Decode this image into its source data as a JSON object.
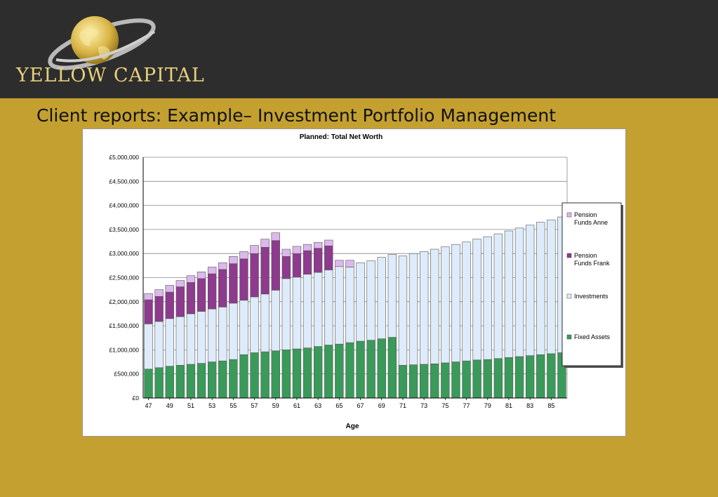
{
  "header": {
    "brand_name": "YELLOW CAPITAL",
    "colors": {
      "band": "#2d2d2d",
      "slide_bg": "#c4a030",
      "logo_gold": "#e7cf7a"
    }
  },
  "slide": {
    "title": "Client reports: Example– Investment Portfolio Management"
  },
  "chart_data": {
    "type": "bar",
    "stacked": true,
    "title": "Planned: Total Net Worth",
    "xlabel": "Age",
    "ylabel": "",
    "ylim": [
      0,
      5000000
    ],
    "y_ticks": [
      "£0",
      "£500,000",
      "£1,000,000",
      "£1,500,000",
      "£2,000,000",
      "£2,500,000",
      "£3,000,000",
      "£3,500,000",
      "£4,000,000",
      "£4,500,000",
      "£5,000,000"
    ],
    "grid": true,
    "legend_position": "right",
    "x_tick_labels": [
      "47",
      "49",
      "51",
      "53",
      "55",
      "57",
      "59",
      "61",
      "63",
      "65",
      "67",
      "69",
      "71",
      "73",
      "75",
      "77",
      "79",
      "81",
      "83",
      "85"
    ],
    "categories": [
      47,
      48,
      49,
      50,
      51,
      52,
      53,
      54,
      55,
      56,
      57,
      58,
      59,
      60,
      61,
      62,
      63,
      64,
      65,
      66,
      67,
      68,
      69,
      70,
      71,
      72,
      73,
      74,
      75,
      76,
      77,
      78,
      79,
      80,
      81,
      82,
      83,
      84,
      85,
      86
    ],
    "series": [
      {
        "name": "Fixed Assets",
        "color": "#3a9a5a",
        "values": [
          600000,
          630000,
          660000,
          680000,
          700000,
          720000,
          750000,
          770000,
          800000,
          900000,
          940000,
          960000,
          980000,
          1000000,
          1020000,
          1040000,
          1070000,
          1100000,
          1120000,
          1150000,
          1180000,
          1200000,
          1230000,
          1260000,
          680000,
          690000,
          700000,
          710000,
          730000,
          750000,
          770000,
          790000,
          800000,
          820000,
          840000,
          860000,
          880000,
          900000,
          920000,
          940000
        ]
      },
      {
        "name": "Investments",
        "color": "#ddebfa",
        "values": [
          940000,
          960000,
          990000,
          1010000,
          1050000,
          1080000,
          1100000,
          1120000,
          1170000,
          1130000,
          1160000,
          1200000,
          1260000,
          1480000,
          1490000,
          1530000,
          1540000,
          1560000,
          1610000,
          1570000,
          1630000,
          1650000,
          1690000,
          1720000,
          2270000,
          2310000,
          2340000,
          2380000,
          2410000,
          2440000,
          2470000,
          2510000,
          2550000,
          2590000,
          2630000,
          2670000,
          2710000,
          2750000,
          2780000,
          2820000
        ]
      },
      {
        "name": "Pension Funds Frank",
        "color": "#8e3a8e",
        "values": [
          500000,
          520000,
          550000,
          620000,
          650000,
          680000,
          730000,
          780000,
          820000,
          860000,
          900000,
          970000,
          1030000,
          460000,
          490000,
          490000,
          500000,
          500000,
          0,
          0,
          0,
          0,
          0,
          0,
          0,
          0,
          0,
          0,
          0,
          0,
          0,
          0,
          0,
          0,
          0,
          0,
          0,
          0,
          0,
          0
        ]
      },
      {
        "name": "Pension Funds Anne",
        "color": "#dcb8ec",
        "values": [
          130000,
          140000,
          140000,
          130000,
          140000,
          140000,
          140000,
          140000,
          150000,
          150000,
          170000,
          170000,
          160000,
          150000,
          150000,
          130000,
          120000,
          120000,
          130000,
          140000,
          0,
          0,
          0,
          0,
          0,
          0,
          0,
          0,
          0,
          0,
          0,
          0,
          0,
          0,
          0,
          0,
          0,
          0,
          0,
          0
        ]
      }
    ]
  }
}
